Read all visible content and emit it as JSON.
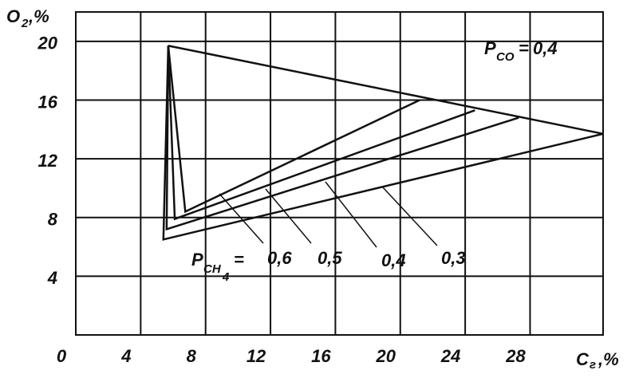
{
  "chart_data": {
    "type": "line",
    "y_label": {
      "main": "O",
      "sub": "2",
      "unit": ",%"
    },
    "x_label": {
      "main": "C",
      "sub": "г",
      "unit": ",%"
    },
    "xlim": [
      0,
      32.5
    ],
    "ylim": [
      0,
      22
    ],
    "xticks": [
      0,
      4,
      8,
      12,
      16,
      20,
      24,
      28
    ],
    "yticks": [
      4,
      8,
      12,
      16,
      20
    ],
    "grid": true,
    "color": "#111111",
    "ch4_label": {
      "main": "P",
      "sub": "CH",
      "subsub": "4",
      "eq": "="
    },
    "co_label": {
      "main": "P",
      "sub": "CO",
      "eq": "="
    },
    "series": [
      {
        "name": "0,6",
        "x": [
          5.7,
          6.75,
          21.2
        ],
        "values": [
          19.7,
          8.4,
          16.0
        ]
      },
      {
        "name": "0,5",
        "x": [
          5.7,
          6.1,
          24.6
        ],
        "values": [
          19.7,
          7.9,
          15.3
        ]
      },
      {
        "name": "0,4",
        "x": [
          5.7,
          5.6,
          27.3
        ],
        "values": [
          19.7,
          7.2,
          14.8
        ]
      },
      {
        "name": "0,3",
        "x": [
          5.7,
          5.4,
          32.5
        ],
        "values": [
          19.7,
          6.5,
          13.7
        ]
      },
      {
        "name": "0,4",
        "x": [
          5.7,
          32.5
        ],
        "values": [
          19.7,
          13.7
        ]
      }
    ]
  }
}
